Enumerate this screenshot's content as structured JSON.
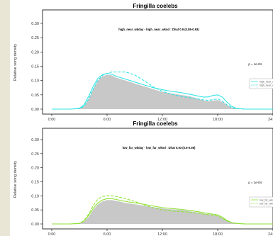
{
  "colors": {
    "fill_gray": "#c8c8c8",
    "cyan": "#33e3e3",
    "green": "#8fe236",
    "axis": "#000000",
    "background": "#e9e6d6"
  },
  "chart_data": [
    {
      "type": "area",
      "title": "Fringilla coelebs",
      "annotation": "high_near_wkday - high_near_wknd : Dhat 0.9 (0.86-0.93)",
      "p_value": "p = 1e-04",
      "ylabel": "Relative song density",
      "xlabel": "",
      "xlim": [
        -1,
        24
      ],
      "ylim": [
        0,
        0.31
      ],
      "x_ticks": [
        "0:00",
        "6:00",
        "12:00",
        "18:00",
        "24:00"
      ],
      "y_ticks": [
        "0.00",
        "0.05",
        "0.10",
        "0.15",
        "0.20",
        "0.25",
        "0.30"
      ],
      "legend": {
        "position": "right",
        "entries": [
          "high_near_wkday",
          "high_near_wknd"
        ]
      },
      "x": [
        0,
        1,
        2,
        3,
        3.5,
        4,
        4.5,
        5,
        5.5,
        6,
        6.5,
        7,
        8,
        9,
        10,
        11,
        12,
        13,
        14,
        15,
        16,
        16.5,
        17,
        17.5,
        18,
        18.5,
        19,
        19.5,
        20,
        21,
        22,
        23,
        24
      ],
      "series": [
        {
          "name": "high_near_wkday",
          "style": "solid",
          "color": "#33e3e3",
          "shaded": true,
          "values": [
            0,
            0,
            0,
            0.002,
            0.01,
            0.035,
            0.07,
            0.1,
            0.115,
            0.12,
            0.118,
            0.11,
            0.1,
            0.09,
            0.08,
            0.07,
            0.06,
            0.055,
            0.05,
            0.045,
            0.035,
            0.03,
            0.028,
            0.03,
            0.032,
            0.025,
            0.015,
            0.006,
            0.002,
            0,
            0,
            0,
            0
          ]
        },
        {
          "name": "high_near_wkday",
          "style": "solid",
          "color": "#33e3e3",
          "shaded": false,
          "values": [
            0,
            0,
            0,
            0.003,
            0.015,
            0.045,
            0.08,
            0.108,
            0.12,
            0.125,
            0.122,
            0.115,
            0.105,
            0.095,
            0.085,
            0.075,
            0.068,
            0.062,
            0.058,
            0.052,
            0.045,
            0.042,
            0.043,
            0.048,
            0.05,
            0.042,
            0.025,
            0.01,
            0.003,
            0,
            0,
            0,
            0
          ]
        },
        {
          "name": "high_near_wknd",
          "style": "dashed",
          "color": "#33e3e3",
          "shaded": false,
          "values": [
            0,
            0,
            0,
            0.002,
            0.01,
            0.035,
            0.07,
            0.1,
            0.118,
            0.125,
            0.13,
            0.13,
            0.13,
            0.12,
            0.1,
            0.078,
            0.062,
            0.052,
            0.045,
            0.04,
            0.035,
            0.032,
            0.031,
            0.033,
            0.036,
            0.028,
            0.015,
            0.006,
            0.002,
            0,
            0,
            0,
            0
          ]
        }
      ]
    },
    {
      "type": "area",
      "title": "Fringilla coelebs",
      "annotation": "low_far_wkday - low_far_wknd : Dhat 0.93 (0.9-0.95)",
      "p_value": "p = 1e-04",
      "ylabel": "Relative song density",
      "xlabel": "",
      "xlim": [
        -1,
        24
      ],
      "ylim": [
        0,
        0.31
      ],
      "x_ticks": [
        "0:00",
        "6:00",
        "12:00",
        "18:00",
        "24:00"
      ],
      "y_ticks": [
        "0.00",
        "0.05",
        "0.10",
        "0.15",
        "0.20",
        "0.25",
        "0.30"
      ],
      "legend": {
        "position": "right",
        "entries": [
          "low_far_wkday",
          "low_far_wknd"
        ]
      },
      "x": [
        0,
        1,
        2,
        3,
        3.5,
        4,
        4.5,
        5,
        5.5,
        6,
        6.5,
        7,
        8,
        9,
        10,
        11,
        12,
        13,
        14,
        15,
        16,
        16.5,
        17,
        17.5,
        18,
        18.5,
        19,
        19.5,
        20,
        21,
        22,
        23,
        24
      ],
      "series": [
        {
          "name": "low_far_wkday",
          "style": "solid",
          "color": "#8fe236",
          "shaded": true,
          "values": [
            0,
            0,
            0,
            0.002,
            0.008,
            0.025,
            0.05,
            0.07,
            0.08,
            0.085,
            0.085,
            0.082,
            0.075,
            0.07,
            0.065,
            0.06,
            0.055,
            0.052,
            0.05,
            0.045,
            0.04,
            0.037,
            0.035,
            0.033,
            0.03,
            0.022,
            0.012,
            0.005,
            0.002,
            0,
            0,
            0,
            0
          ]
        },
        {
          "name": "low_far_wkday",
          "style": "solid",
          "color": "#8fe236",
          "shaded": false,
          "values": [
            0,
            0,
            0,
            0.002,
            0.01,
            0.03,
            0.055,
            0.075,
            0.085,
            0.09,
            0.09,
            0.087,
            0.08,
            0.075,
            0.07,
            0.064,
            0.058,
            0.055,
            0.052,
            0.048,
            0.043,
            0.04,
            0.037,
            0.035,
            0.032,
            0.024,
            0.013,
            0.005,
            0.002,
            0,
            0,
            0,
            0
          ]
        },
        {
          "name": "low_far_wknd",
          "style": "dashed",
          "color": "#8fe236",
          "shaded": false,
          "values": [
            0,
            0,
            0,
            0.002,
            0.012,
            0.035,
            0.065,
            0.088,
            0.098,
            0.1,
            0.1,
            0.098,
            0.09,
            0.08,
            0.068,
            0.058,
            0.05,
            0.046,
            0.044,
            0.041,
            0.038,
            0.035,
            0.033,
            0.031,
            0.028,
            0.02,
            0.011,
            0.004,
            0.002,
            0,
            0,
            0,
            0
          ]
        }
      ]
    }
  ]
}
